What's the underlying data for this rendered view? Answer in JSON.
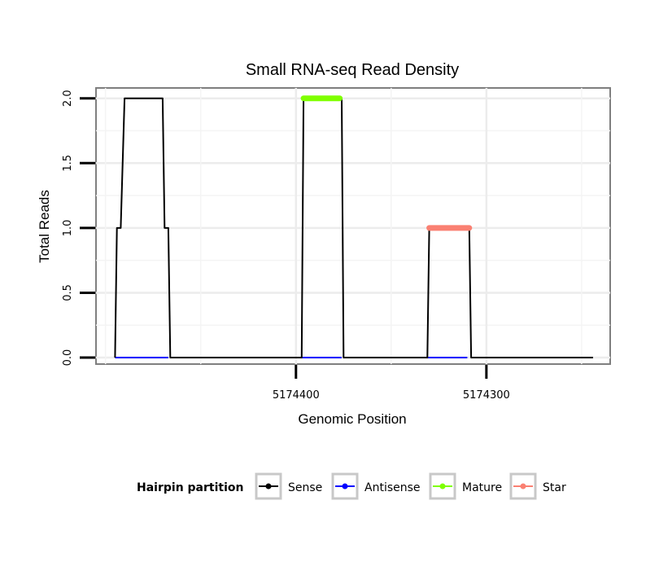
{
  "chart_data": {
    "type": "line",
    "title": "Small RNA-seq Read Density",
    "xlabel": "Genomic Position",
    "ylabel": "Total Reads",
    "x_reversed": true,
    "xlim": [
      5174505,
      5174235
    ],
    "ylim": [
      -0.05,
      2.08
    ],
    "xticks": [
      5174400,
      5174300
    ],
    "xtick_labels": [
      "5174400",
      "5174300"
    ],
    "yticks": [
      0.0,
      0.5,
      1.0,
      1.5,
      2.0
    ],
    "ytick_labels": [
      "0.0",
      "0.5",
      "1.0",
      "1.5",
      "2.0"
    ],
    "grid": true,
    "legend": {
      "title": "Hairpin partition",
      "position": "bottom",
      "entries": [
        {
          "label": "Sense",
          "color": "#000000"
        },
        {
          "label": "Antisense",
          "color": "#0000ff"
        },
        {
          "label": "Mature",
          "color": "#7fff00"
        },
        {
          "label": "Star",
          "color": "#fa8072"
        }
      ]
    },
    "series": [
      {
        "name": "Antisense",
        "color": "#0000ff",
        "x": [
          5174495,
          5174467
        ],
        "y": [
          0,
          0
        ]
      },
      {
        "name": "Antisense",
        "color": "#0000ff",
        "x": [
          5174397,
          5174376
        ],
        "y": [
          0,
          0
        ]
      },
      {
        "name": "Antisense",
        "color": "#0000ff",
        "x": [
          5174331,
          5174310
        ],
        "y": [
          0,
          0
        ]
      },
      {
        "name": "Sense",
        "color": "#000000",
        "x": [
          5174495,
          5174494,
          5174492,
          5174490,
          5174470,
          5174469,
          5174467,
          5174466,
          5174397,
          5174396,
          5174395,
          5174377,
          5174376,
          5174375,
          5174331,
          5174330,
          5174329,
          5174310,
          5174309,
          5174308,
          5174244
        ],
        "y": [
          0,
          1,
          1,
          2,
          2,
          1,
          1,
          0,
          0,
          2,
          2,
          2,
          2,
          0,
          0,
          1,
          1,
          1,
          1,
          0,
          0
        ]
      },
      {
        "name": "Mature",
        "color": "#7fff00",
        "x": [
          5174396,
          5174377
        ],
        "y": [
          2,
          2
        ]
      },
      {
        "name": "Star",
        "color": "#fa8072",
        "x": [
          5174330,
          5174309
        ],
        "y": [
          1,
          1
        ]
      }
    ]
  }
}
